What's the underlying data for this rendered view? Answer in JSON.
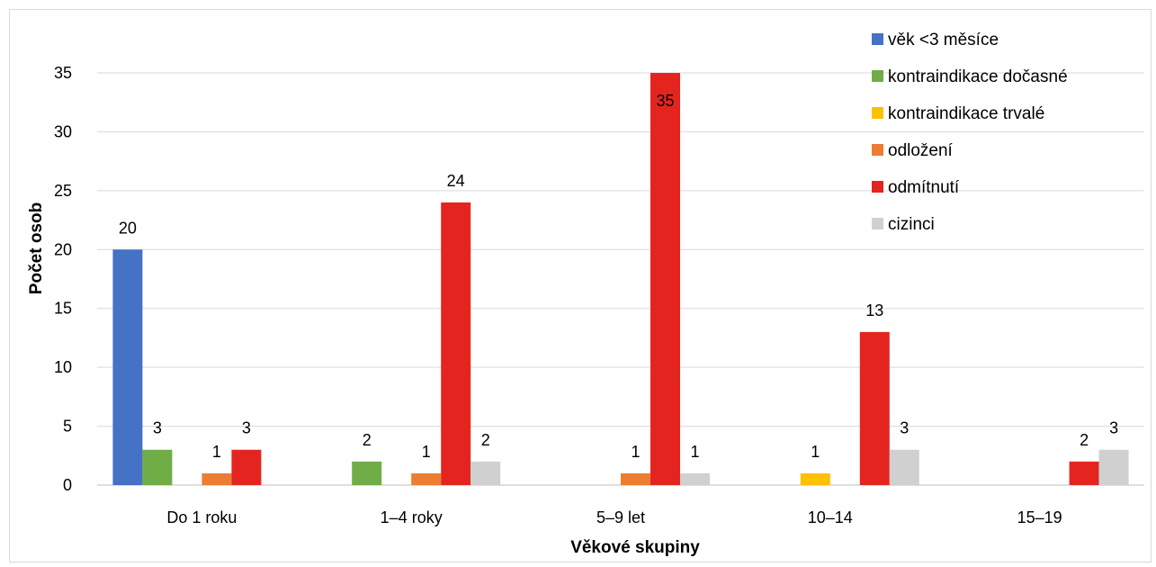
{
  "chart_data": {
    "type": "bar",
    "title": "",
    "xlabel": "Věkové skupiny",
    "ylabel": "Počet osob",
    "ylim": [
      0,
      35
    ],
    "yticks": [
      0,
      5,
      10,
      15,
      20,
      25,
      30,
      35
    ],
    "grid": true,
    "legend_position": "top-right",
    "categories": [
      "Do 1 roku",
      "1–4 roky",
      "5–9 let",
      "10–14",
      "15–19"
    ],
    "series": [
      {
        "name": "věk <3 měsíce",
        "color": "#4472c4",
        "values": [
          20,
          0,
          0,
          0,
          0
        ],
        "labels": [
          "20",
          "",
          "",
          "",
          ""
        ]
      },
      {
        "name": "kontraindikace dočasné",
        "color": "#70ad47",
        "values": [
          3,
          2,
          0,
          0,
          0
        ],
        "labels": [
          "3",
          "2",
          "",
          "",
          ""
        ]
      },
      {
        "name": "kontraindikace trvalé",
        "color": "#ffc000",
        "values": [
          0,
          0,
          0,
          1,
          0
        ],
        "labels": [
          "",
          "",
          "",
          "1",
          ""
        ]
      },
      {
        "name": "odložení",
        "color": "#ed7d31",
        "values": [
          1,
          1,
          1,
          0,
          0
        ],
        "labels": [
          "1",
          "1",
          "1",
          "",
          ""
        ]
      },
      {
        "name": "odmítnutí",
        "color": "#e4251f",
        "values": [
          3,
          24,
          35,
          13,
          2
        ],
        "labels": [
          "3",
          "24",
          "35",
          "13",
          "2"
        ]
      },
      {
        "name": "cizinci",
        "color": "#d0d0d0",
        "values": [
          0,
          2,
          1,
          3,
          3
        ],
        "labels": [
          "",
          "2",
          "1",
          "3",
          "3"
        ]
      }
    ]
  }
}
